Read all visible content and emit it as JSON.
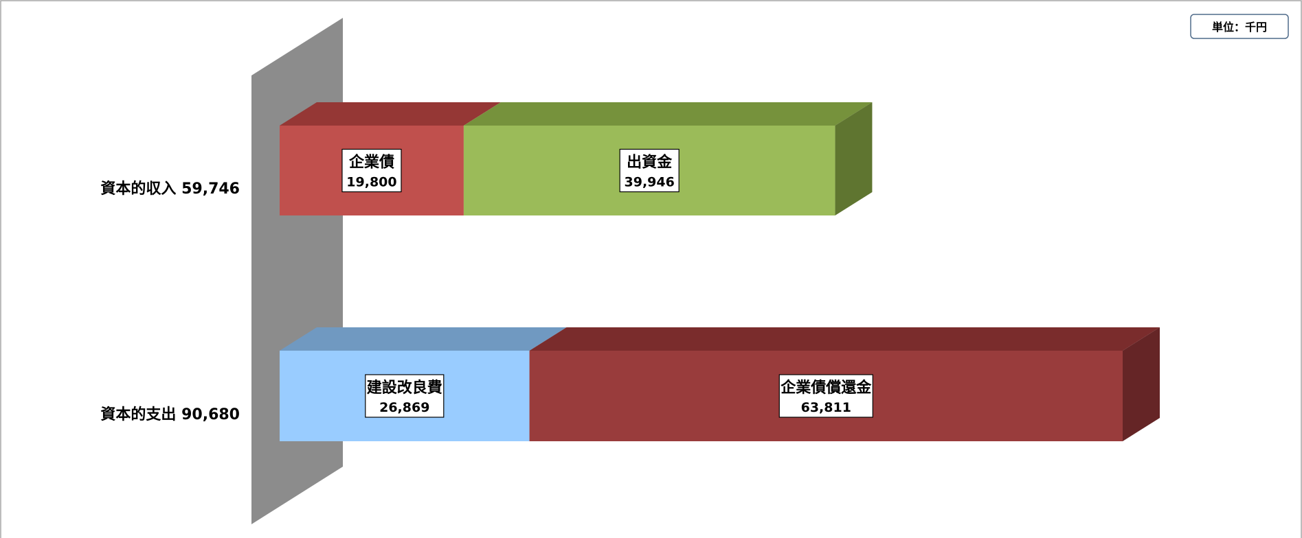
{
  "chart_data": {
    "type": "bar",
    "orientation": "horizontal",
    "stacked": true,
    "three_d": true,
    "unit_label": "単位：千円",
    "categories": [
      {
        "label": "資本的収入",
        "total": "59,746"
      },
      {
        "label": "資本的支出",
        "total": "90,680"
      }
    ],
    "series": [
      {
        "category_index": 0,
        "name": "企業債",
        "value": 19800,
        "value_label": "19,800",
        "front": "#c0504d",
        "top": "#953735",
        "side": "#7b2c2a"
      },
      {
        "category_index": 0,
        "name": "出資金",
        "value": 39946,
        "value_label": "39,946",
        "front": "#9bbb59",
        "top": "#76923c",
        "side": "#5f7530"
      },
      {
        "category_index": 1,
        "name": "建設改良費",
        "value": 26869,
        "value_label": "26,869",
        "front": "#99ccff",
        "top": "#7099c1",
        "side": "#5f84a8"
      },
      {
        "category_index": 1,
        "name": "企業債償還金",
        "value": 63811,
        "value_label": "63,811",
        "front": "#993c3c",
        "top": "#7a2c2c",
        "side": "#652526"
      }
    ],
    "xlim": [
      0,
      90680
    ],
    "grid": false,
    "legend": "none",
    "colors": {
      "wall_front": "#8c8c8c",
      "border": "#a6a6a6"
    }
  }
}
